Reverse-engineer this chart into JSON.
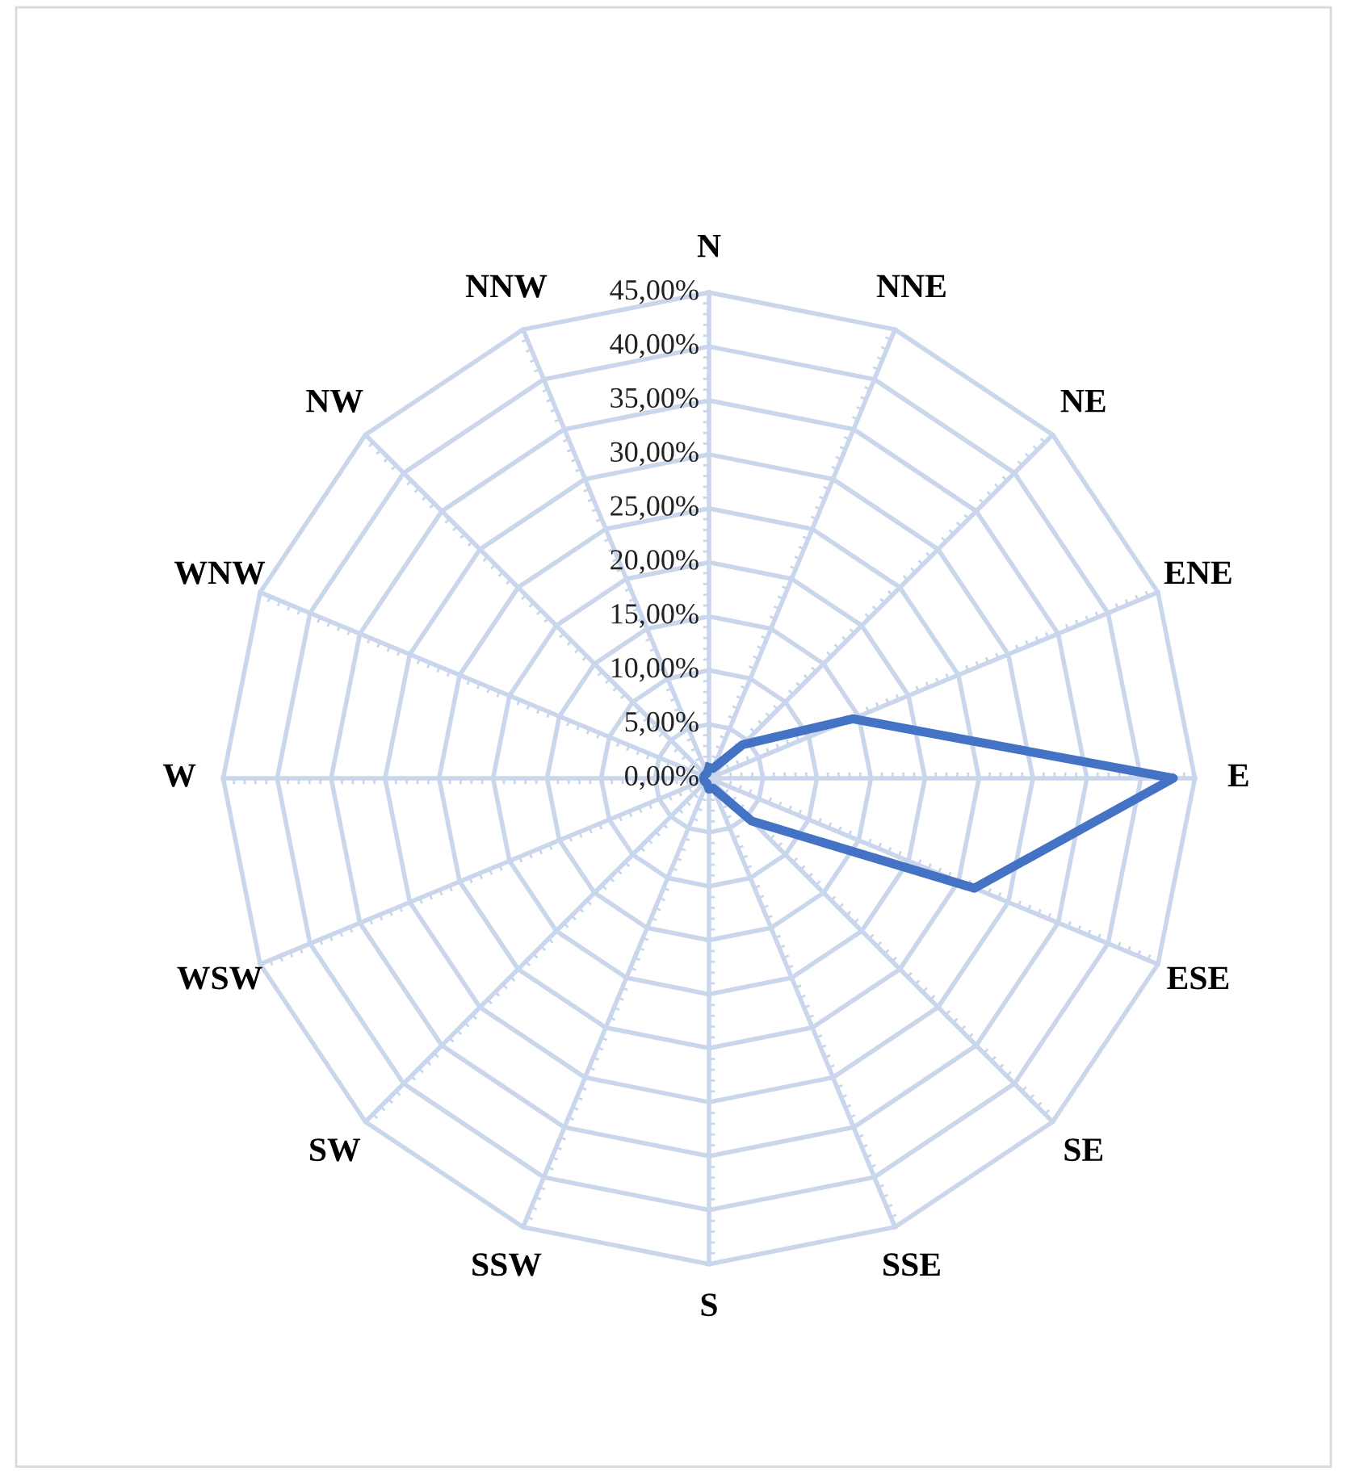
{
  "chart_data": {
    "type": "radar",
    "categories": [
      "N",
      "NNE",
      "NE",
      "ENE",
      "E",
      "ESE",
      "SE",
      "SSE",
      "S",
      "SSW",
      "SW",
      "WSW",
      "W",
      "WNW",
      "NW",
      "NNW"
    ],
    "series": [
      {
        "color": "#4472c4",
        "values": [
          1.0,
          1.0,
          4.4,
          14.4,
          43.0,
          26.6,
          5.6,
          1.0,
          1.0,
          0.5,
          0.5,
          0.5,
          0.5,
          0.5,
          0.5,
          0.5
        ]
      }
    ],
    "ylim": [
      0,
      45
    ],
    "yticks": [
      {
        "value": 0,
        "label": "0,00%"
      },
      {
        "value": 5,
        "label": "5,00%"
      },
      {
        "value": 10,
        "label": "10,00%"
      },
      {
        "value": 15,
        "label": "15,00%"
      },
      {
        "value": 20,
        "label": "20,00%"
      },
      {
        "value": 25,
        "label": "25,00%"
      },
      {
        "value": 30,
        "label": "30,00%"
      },
      {
        "value": 35,
        "label": "35,00%"
      },
      {
        "value": 40,
        "label": "40,00%"
      },
      {
        "value": 45,
        "label": "45,00%"
      }
    ],
    "grid": true,
    "marker": "none",
    "line_style": "solid",
    "legend": false
  }
}
